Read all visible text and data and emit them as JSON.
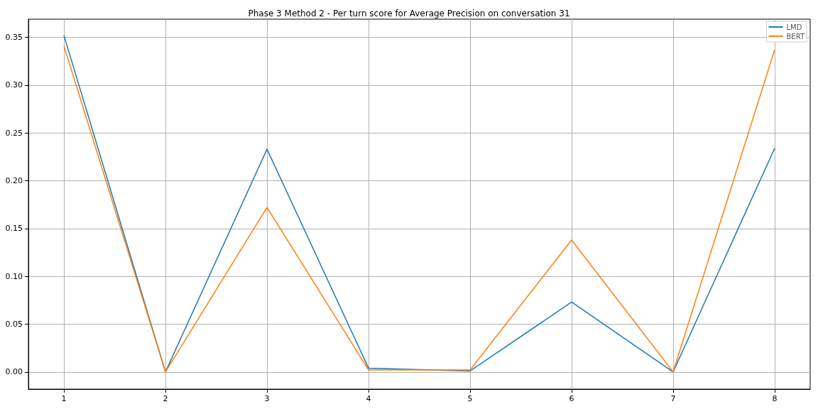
{
  "chart_data": {
    "type": "line",
    "title": "Phase 3 Method 2 - Per turn score for Average Precision on conversation 31",
    "x": [
      1,
      2,
      3,
      4,
      5,
      6,
      7,
      8
    ],
    "series": [
      {
        "name": "LMD",
        "color": "#1f77b4",
        "values": [
          0.352,
          0,
          0.233,
          0.004,
          0.001,
          0.073,
          0,
          0.234
        ]
      },
      {
        "name": "BERT",
        "color": "#ff7f0e",
        "values": [
          0.341,
          0,
          0.172,
          0.002,
          0.002,
          0.138,
          0,
          0.337
        ]
      }
    ],
    "xlim": [
      0.65,
      8.35
    ],
    "xticks": [
      1,
      2,
      3,
      4,
      5,
      6,
      7,
      8
    ],
    "ylim": [
      -0.018,
      0.369
    ],
    "yticks": [
      {
        "value": 0,
        "label": "0.00"
      },
      {
        "value": 0.05,
        "label": "0.05"
      },
      {
        "value": 0.1,
        "label": "0.10"
      },
      {
        "value": 0.15,
        "label": "0.15"
      },
      {
        "value": 0.2,
        "label": "0.20"
      },
      {
        "value": 0.25,
        "label": "0.25"
      },
      {
        "value": 0.3,
        "label": "0.30"
      },
      {
        "value": 0.35,
        "label": "0.35"
      }
    ],
    "grid": true,
    "legend": "top right",
    "marker": "none",
    "line_style": "solid"
  }
}
